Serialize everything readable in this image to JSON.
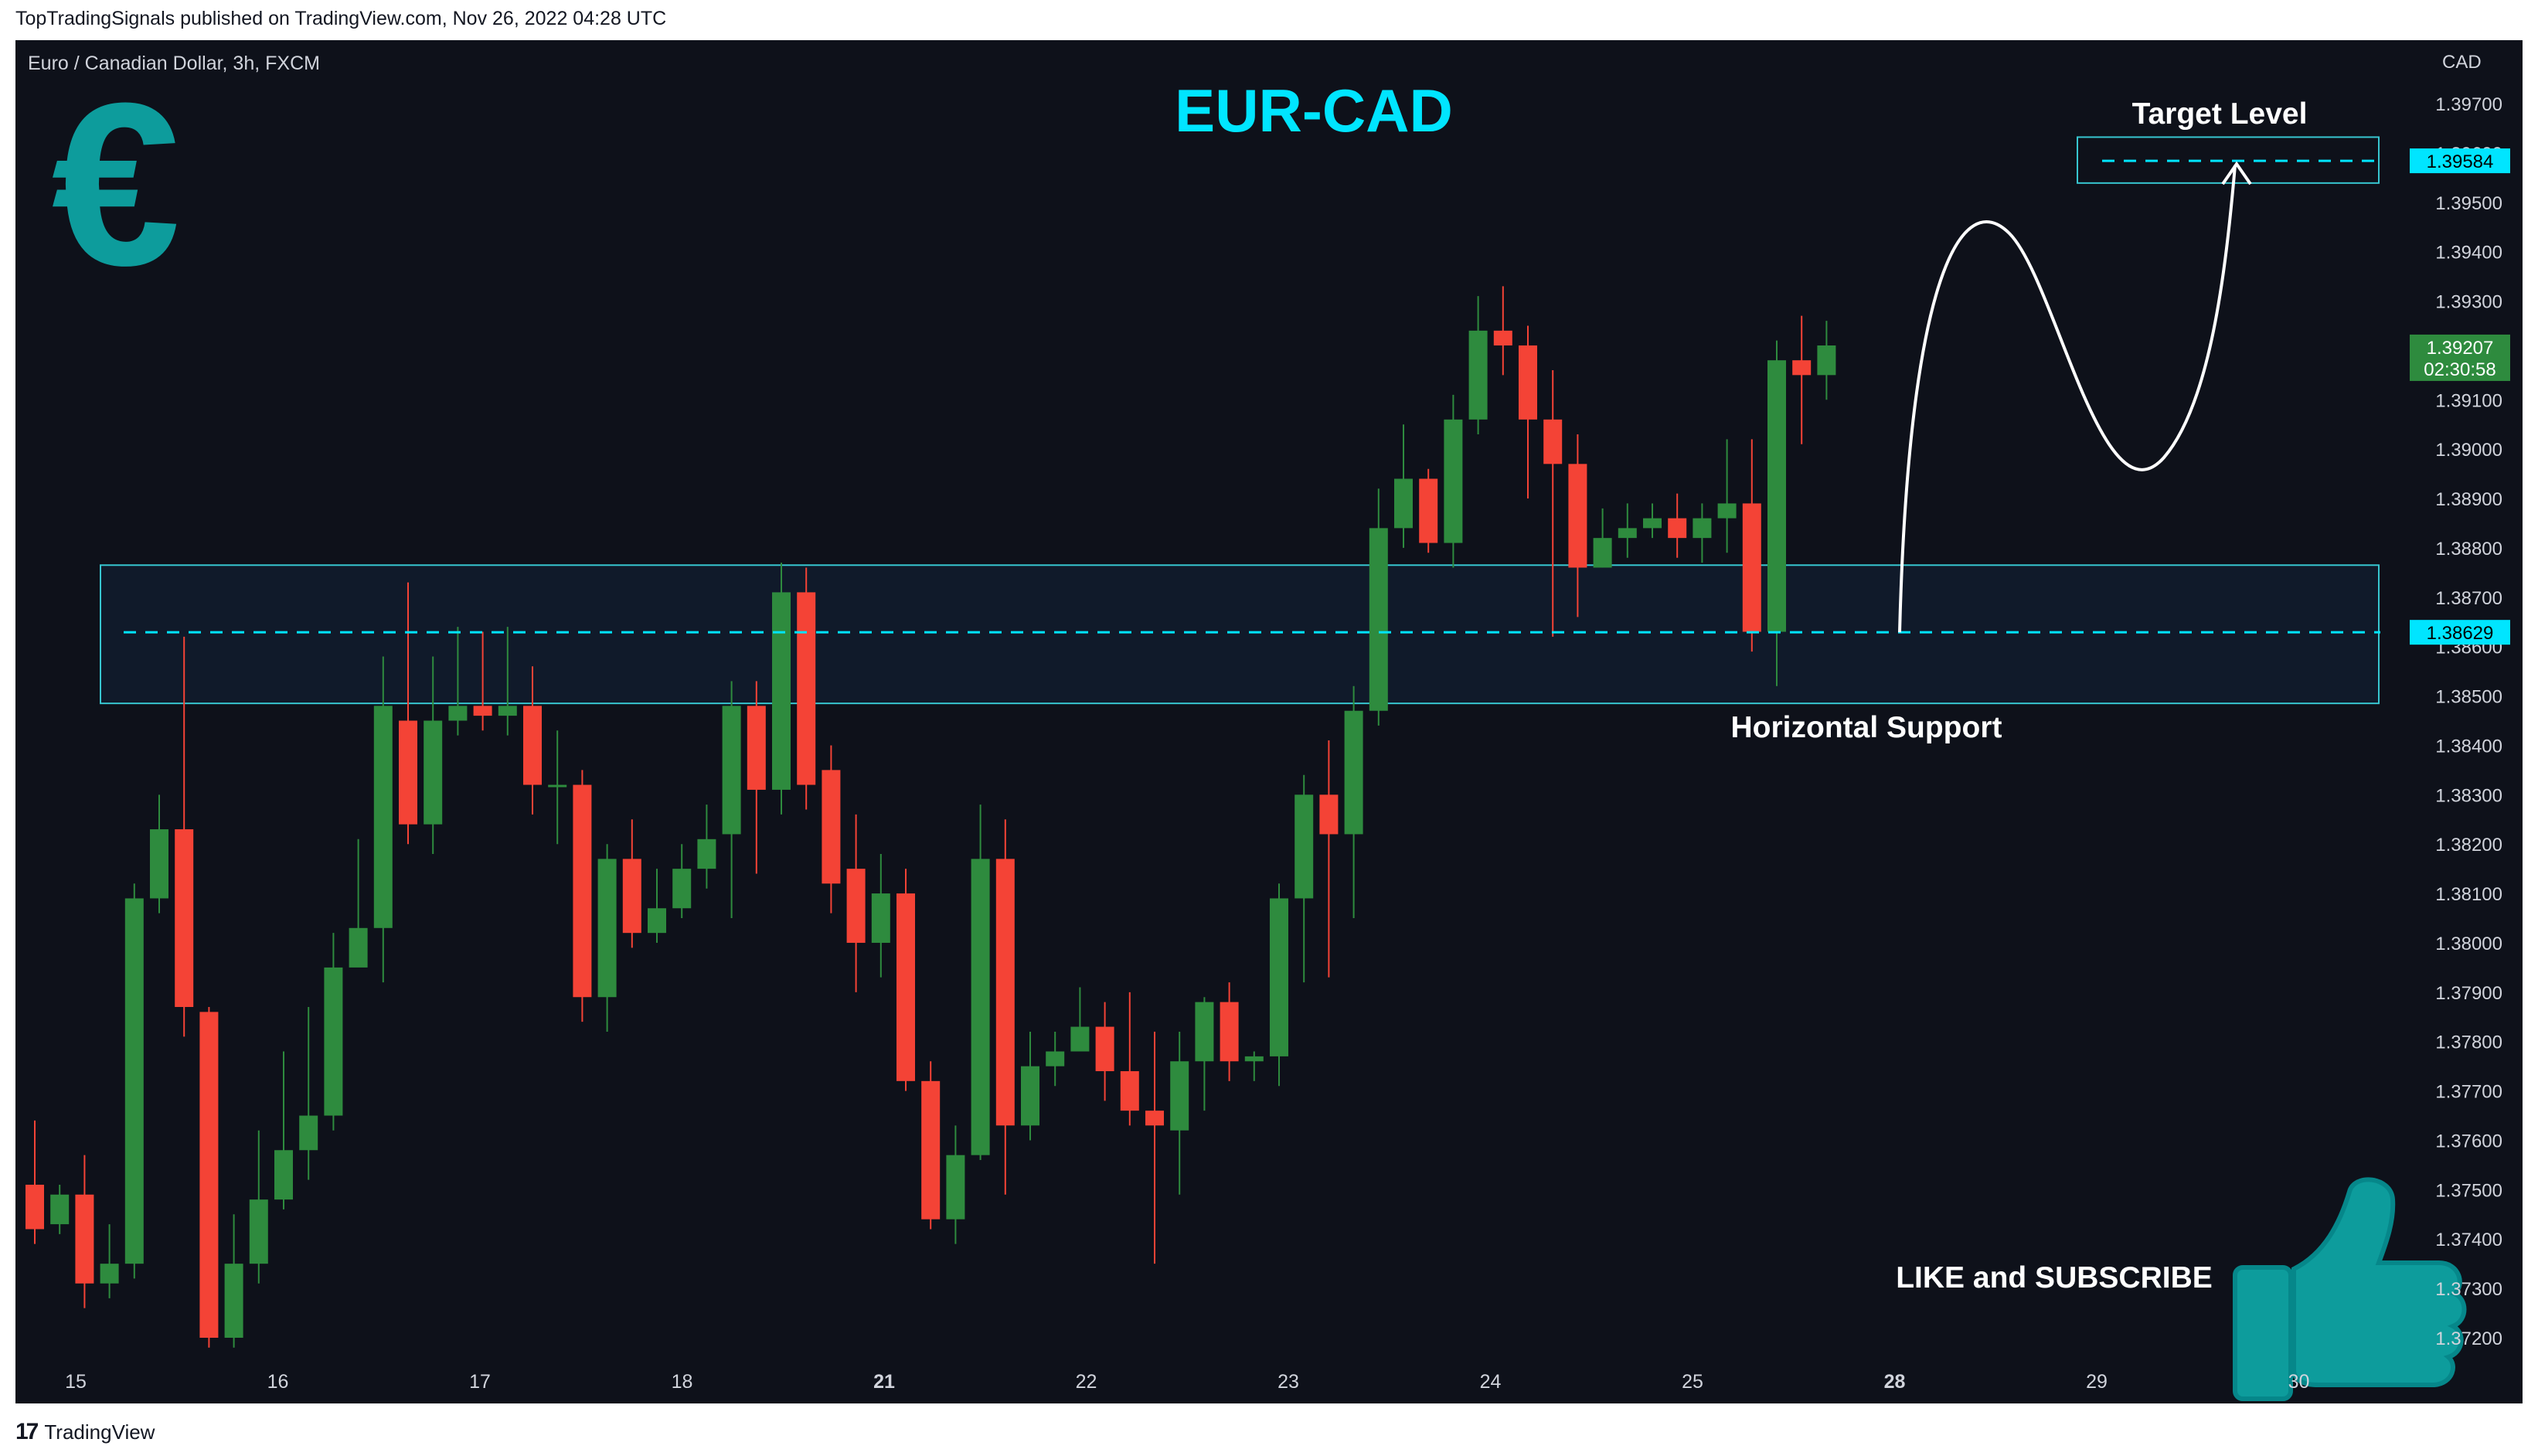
{
  "publication": "TopTradingSignals published on TradingView.com, Nov 26, 2022 04:28 UTC",
  "symbol": "Euro / Canadian Dollar, 3h, FXCM",
  "footer": {
    "brand": "TradingView"
  },
  "annotations": {
    "title": "EUR-CAD",
    "target_label": "Target Level",
    "support_label": "Horizontal Support",
    "cta": "LIKE and SUBSCRIBE"
  },
  "colors": {
    "background": "#0e111a",
    "bull": "#2e8b3e",
    "bear": "#f44336",
    "accent": "#00e5ff",
    "teal_icon": "#0d9c9c",
    "zone_fill": "#111c2e",
    "zone_border": "#37c6d0"
  },
  "icons": [
    "euro-sign-icon",
    "thumbs-up-icon",
    "tradingview-logo-icon"
  ],
  "chart_data": {
    "type": "candlestick",
    "title": "EUR-CAD",
    "currency": "CAD",
    "ylim": [
      1.3717,
      1.3986
    ],
    "y_ticks": [
      "1.37200",
      "1.37300",
      "1.37400",
      "1.37500",
      "1.37600",
      "1.37700",
      "1.37800",
      "1.37900",
      "1.38000",
      "1.38100",
      "1.38200",
      "1.38300",
      "1.38400",
      "1.38500",
      "1.38600",
      "1.38700",
      "1.38800",
      "1.38900",
      "1.39000",
      "1.39100",
      "1.39200",
      "1.39300",
      "1.39400",
      "1.39500",
      "1.39600",
      "1.39700"
    ],
    "x_ticks": [
      {
        "label": "15",
        "bold": false
      },
      {
        "label": "16",
        "bold": false
      },
      {
        "label": "17",
        "bold": false
      },
      {
        "label": "18",
        "bold": false
      },
      {
        "label": "21",
        "bold": true
      },
      {
        "label": "22",
        "bold": false
      },
      {
        "label": "23",
        "bold": false
      },
      {
        "label": "24",
        "bold": false
      },
      {
        "label": "25",
        "bold": false
      },
      {
        "label": "28",
        "bold": true
      },
      {
        "label": "29",
        "bold": false
      },
      {
        "label": "30",
        "bold": false
      }
    ],
    "price_labels": [
      {
        "value": 1.39584,
        "text": "1.39584",
        "style": "accent"
      },
      {
        "value": 1.39207,
        "text": "1.39207",
        "countdown": "02:30:58",
        "style": "bull"
      },
      {
        "value": 1.38629,
        "text": "1.38629",
        "style": "accent"
      }
    ],
    "support_zone": {
      "top": 1.38765,
      "bottom": 1.38485,
      "level": 1.38629
    },
    "target_zone": {
      "top": 1.39632,
      "bottom": 1.39539,
      "level": 1.39584
    },
    "candles": [
      [
        1.3751,
        1.3742,
        1.3764,
        1.3739
      ],
      [
        1.3743,
        1.3749,
        1.3751,
        1.3741
      ],
      [
        1.3749,
        1.3731,
        1.3757,
        1.3726
      ],
      [
        1.3731,
        1.3735,
        1.3743,
        1.3728
      ],
      [
        1.3735,
        1.3809,
        1.3812,
        1.3732
      ],
      [
        1.3809,
        1.3823,
        1.383,
        1.3806
      ],
      [
        1.3823,
        1.3787,
        1.3862,
        1.3781
      ],
      [
        1.3786,
        1.372,
        1.3787,
        1.3718
      ],
      [
        1.372,
        1.3735,
        1.3745,
        1.3718
      ],
      [
        1.3735,
        1.3748,
        1.3762,
        1.3731
      ],
      [
        1.3748,
        1.3758,
        1.3778,
        1.3746
      ],
      [
        1.3758,
        1.3765,
        1.3787,
        1.3752
      ],
      [
        1.3765,
        1.3795,
        1.3802,
        1.3762
      ],
      [
        1.3795,
        1.3803,
        1.3821,
        1.3798
      ],
      [
        1.3803,
        1.3848,
        1.3858,
        1.3792
      ],
      [
        1.3845,
        1.3824,
        1.3873,
        1.382
      ],
      [
        1.3824,
        1.3845,
        1.3858,
        1.3818
      ],
      [
        1.3845,
        1.3848,
        1.3864,
        1.3842
      ],
      [
        1.3848,
        1.3846,
        1.3863,
        1.3843
      ],
      [
        1.3846,
        1.3848,
        1.3864,
        1.3842
      ],
      [
        1.3848,
        1.3832,
        1.3856,
        1.3826
      ],
      [
        1.3832,
        1.3832,
        1.3843,
        1.382
      ],
      [
        1.3832,
        1.3789,
        1.3835,
        1.3784
      ],
      [
        1.3789,
        1.3817,
        1.382,
        1.3782
      ],
      [
        1.3817,
        1.3802,
        1.3825,
        1.3799
      ],
      [
        1.3802,
        1.3807,
        1.3815,
        1.38
      ],
      [
        1.3807,
        1.3815,
        1.382,
        1.3805
      ],
      [
        1.3815,
        1.3821,
        1.3828,
        1.3811
      ],
      [
        1.3822,
        1.3848,
        1.3853,
        1.3805
      ],
      [
        1.3848,
        1.3831,
        1.3853,
        1.3814
      ],
      [
        1.3831,
        1.3871,
        1.3877,
        1.3826
      ],
      [
        1.3871,
        1.3832,
        1.3876,
        1.3827
      ],
      [
        1.3835,
        1.3812,
        1.384,
        1.3806
      ],
      [
        1.3815,
        1.38,
        1.3826,
        1.379
      ],
      [
        1.38,
        1.381,
        1.3818,
        1.3793
      ],
      [
        1.381,
        1.3772,
        1.3815,
        1.377
      ],
      [
        1.3772,
        1.3744,
        1.3776,
        1.3742
      ],
      [
        1.3744,
        1.3757,
        1.3763,
        1.3739
      ],
      [
        1.3757,
        1.3817,
        1.3828,
        1.3756
      ],
      [
        1.3817,
        1.3763,
        1.3825,
        1.3749
      ],
      [
        1.3763,
        1.3775,
        1.3782,
        1.376
      ],
      [
        1.3775,
        1.3778,
        1.3782,
        1.3771
      ],
      [
        1.3778,
        1.3783,
        1.3791,
        1.378
      ],
      [
        1.3783,
        1.3774,
        1.3788,
        1.3768
      ],
      [
        1.3774,
        1.3766,
        1.379,
        1.3763
      ],
      [
        1.3766,
        1.3763,
        1.3782,
        1.3735
      ],
      [
        1.3762,
        1.3776,
        1.3782,
        1.3749
      ],
      [
        1.3776,
        1.3788,
        1.3789,
        1.3766
      ],
      [
        1.3788,
        1.3776,
        1.3792,
        1.3772
      ],
      [
        1.3776,
        1.3777,
        1.3778,
        1.3772
      ],
      [
        1.3777,
        1.3809,
        1.3812,
        1.3771
      ],
      [
        1.3809,
        1.383,
        1.3834,
        1.3792
      ],
      [
        1.383,
        1.3822,
        1.3841,
        1.3793
      ],
      [
        1.3822,
        1.3847,
        1.3852,
        1.3805
      ],
      [
        1.3847,
        1.3884,
        1.3892,
        1.3844
      ],
      [
        1.3884,
        1.3894,
        1.3905,
        1.388
      ],
      [
        1.3894,
        1.3881,
        1.3896,
        1.3879
      ],
      [
        1.3881,
        1.3906,
        1.3911,
        1.3876
      ],
      [
        1.3906,
        1.3924,
        1.3931,
        1.3903
      ],
      [
        1.3924,
        1.3921,
        1.3933,
        1.3915
      ],
      [
        1.3921,
        1.3906,
        1.3925,
        1.389
      ],
      [
        1.3906,
        1.3897,
        1.3916,
        1.3862
      ],
      [
        1.3897,
        1.3876,
        1.3903,
        1.3866
      ],
      [
        1.3876,
        1.3882,
        1.3888,
        1.3876
      ],
      [
        1.3882,
        1.3884,
        1.3889,
        1.3878
      ],
      [
        1.3884,
        1.3886,
        1.3889,
        1.3882
      ],
      [
        1.3886,
        1.3882,
        1.3891,
        1.3878
      ],
      [
        1.3882,
        1.3886,
        1.3889,
        1.3877
      ],
      [
        1.3886,
        1.3889,
        1.3902,
        1.3879
      ],
      [
        1.3889,
        1.3863,
        1.3902,
        1.3859
      ],
      [
        1.3863,
        1.3918,
        1.3922,
        1.3852
      ],
      [
        1.3918,
        1.3915,
        1.3927,
        1.3901
      ],
      [
        1.3915,
        1.3921,
        1.3926,
        1.391
      ]
    ]
  }
}
